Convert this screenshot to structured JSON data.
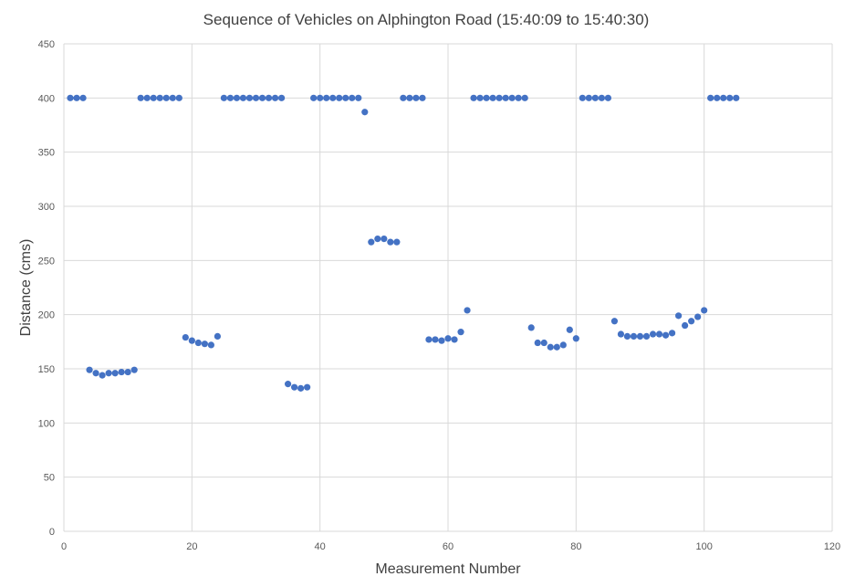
{
  "chart_data": {
    "type": "scatter",
    "title": "Sequence of Vehicles on Alphington Road (15:40:09 to 15:40:30)",
    "xlabel": "Measurement Number",
    "ylabel": "Distance (cms)",
    "xlim": [
      0,
      120
    ],
    "ylim": [
      0,
      450
    ],
    "xticks": [
      0,
      20,
      40,
      60,
      80,
      100,
      120
    ],
    "yticks": [
      0,
      50,
      100,
      150,
      200,
      250,
      300,
      350,
      400,
      450
    ],
    "grid": true,
    "legend": "none",
    "marker_color": "#4472c4",
    "series": [
      {
        "x": [
          1,
          2,
          3,
          4,
          5,
          6,
          7,
          8,
          9,
          10,
          11,
          12,
          13,
          14,
          15,
          16,
          17,
          18,
          19,
          20,
          21,
          22,
          23,
          24,
          25,
          26,
          27,
          28,
          29,
          30,
          31,
          32,
          33,
          34,
          35,
          36,
          37,
          38,
          39,
          40,
          41,
          42,
          43,
          44,
          45,
          46,
          47,
          48,
          49,
          50,
          51,
          52,
          53,
          54,
          55,
          56,
          57,
          58,
          59,
          60,
          61,
          62,
          63,
          64,
          65,
          66,
          67,
          68,
          69,
          70,
          71,
          72,
          73,
          74,
          75,
          76,
          77,
          78,
          79,
          80,
          81,
          82,
          83,
          84,
          85,
          86,
          87,
          88,
          89,
          90,
          91,
          92,
          93,
          94,
          95,
          96,
          97,
          98,
          99,
          100,
          101,
          102,
          103,
          104,
          105
        ],
        "y": [
          400,
          400,
          400,
          149,
          146,
          144,
          146,
          146,
          147,
          147,
          149,
          400,
          400,
          400,
          400,
          400,
          400,
          400,
          179,
          176,
          174,
          173,
          172,
          180,
          400,
          400,
          400,
          400,
          400,
          400,
          400,
          400,
          400,
          400,
          136,
          133,
          132,
          133,
          400,
          400,
          400,
          400,
          400,
          400,
          400,
          400,
          387,
          267,
          270,
          270,
          267,
          267,
          400,
          400,
          400,
          400,
          177,
          177,
          176,
          178,
          177,
          184,
          204,
          400,
          400,
          400,
          400,
          400,
          400,
          400,
          400,
          400,
          188,
          174,
          174,
          170,
          170,
          172,
          186,
          178,
          400,
          400,
          400,
          400,
          400,
          194,
          182,
          180,
          180,
          180,
          180,
          182,
          182,
          181,
          183,
          199,
          190,
          194,
          198,
          204,
          400,
          400,
          400,
          400,
          400
        ]
      }
    ]
  }
}
